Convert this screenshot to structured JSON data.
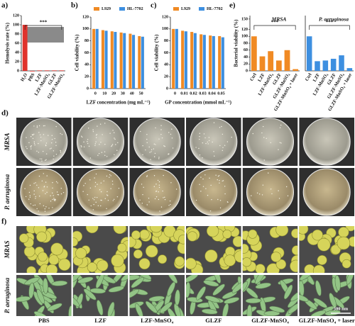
{
  "panel_labels": [
    "a)",
    "b)",
    "c)",
    "d)",
    "e)",
    "f)"
  ],
  "chart_data": [
    {
      "type": "bar",
      "ylabel": "Hemolysis rate (%)",
      "categories": [
        "H₂O",
        "PBS",
        "LZF",
        "LZF-MnSO₄",
        "GLZF",
        "GLZF-MnSO₄"
      ],
      "values": [
        100,
        0,
        1,
        1,
        1,
        1
      ],
      "color": "#e0322c",
      "ylim": [
        0,
        120
      ],
      "yticks": [
        0,
        20,
        40,
        60,
        80,
        100,
        120
      ],
      "annotation": "***"
    },
    {
      "type": "bar",
      "ylabel": "Cell viability (%)",
      "xlabel": "LZF concentration (mg mL⁻¹)",
      "categories": [
        "0",
        "10",
        "20",
        "30",
        "40",
        "50"
      ],
      "series": [
        {
          "name": "L929",
          "color": "#f08a24",
          "values": [
            100,
            98,
            96,
            94,
            92,
            88
          ]
        },
        {
          "name": "HL-7702",
          "color": "#3d8fe0",
          "values": [
            100,
            97,
            95,
            93,
            90,
            87
          ]
        }
      ],
      "ylim": [
        0,
        120
      ],
      "yticks": [
        0,
        20,
        40,
        60,
        80,
        100,
        120
      ]
    },
    {
      "type": "bar",
      "ylabel": "Cell viability (%)",
      "xlabel": "GP concentration (mmol mL⁻¹)",
      "categories": [
        "0",
        "0.01",
        "0.02",
        "0.03",
        "0.04",
        "0.05"
      ],
      "series": [
        {
          "name": "L929",
          "color": "#f08a24",
          "values": [
            100,
            97,
            95,
            91,
            89,
            88
          ]
        },
        {
          "name": "HL-7702",
          "color": "#3d8fe0",
          "values": [
            100,
            96,
            93,
            90,
            88,
            86
          ]
        }
      ],
      "ylim": [
        0,
        120
      ],
      "yticks": [
        0,
        20,
        40,
        60,
        80,
        100,
        120
      ]
    },
    {
      "type": "bar",
      "title": "MRSA",
      "ylabel": "Bacterial viability (%)",
      "categories": [
        "Ctrl",
        "LZF",
        "LZF-MnSO₄",
        "GLZF",
        "GLZF-MnSO₄",
        "GLZF-MnSO₄ + laser"
      ],
      "values": [
        100,
        42,
        57,
        30,
        60,
        5
      ],
      "color": "#f08a24",
      "ylim": [
        0,
        160
      ],
      "yticks": [
        0,
        20,
        40,
        60,
        80,
        100,
        120,
        150
      ],
      "annotation": "***"
    },
    {
      "type": "bar",
      "title": "P. aeruginosa",
      "categories": [
        "Ctrl",
        "LZF",
        "LZF-MnSO₄",
        "GLZF",
        "GLZF-MnSO₄",
        "GLZF-MnSO₄ + laser"
      ],
      "values": [
        100,
        28,
        30,
        35,
        45,
        8
      ],
      "color": "#3d8fe0",
      "ylim": [
        0,
        160
      ],
      "annotation": "***"
    }
  ],
  "image_grid": {
    "columns": [
      "PBS",
      "LZF",
      "LZF-MnSO₄",
      "GLZF",
      "GLZF-MnSO₄",
      "GLZF-MnSO₄ + laser"
    ],
    "rows": [
      "MRSA",
      "P. aeruginosa",
      "MRAS",
      "P. aeruginosa"
    ],
    "scale_bar": "500 nm"
  }
}
